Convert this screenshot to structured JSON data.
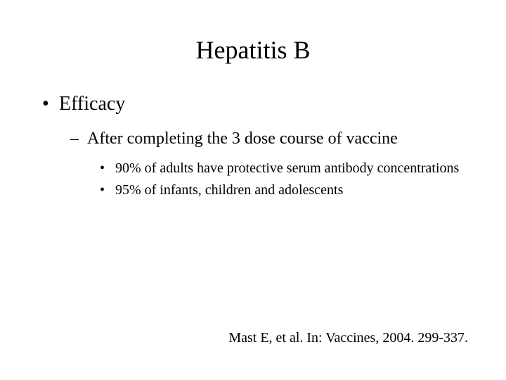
{
  "slide": {
    "title": "Hepatitis B",
    "level1": "Efficacy",
    "level2": "After completing the 3 dose course of vaccine",
    "level3_items": [
      "90% of adults have protective serum antibody concentrations",
      "95% of infants, children and adolescents"
    ],
    "citation": "Mast E, et al. In: Vaccines, 2004. 299-337."
  },
  "colors": {
    "background": "#ffffff",
    "text": "#000000"
  },
  "typography": {
    "font_family": "Times New Roman",
    "title_fontsize": 36,
    "level1_fontsize": 28,
    "level2_fontsize": 24,
    "level3_fontsize": 20,
    "citation_fontsize": 20
  }
}
